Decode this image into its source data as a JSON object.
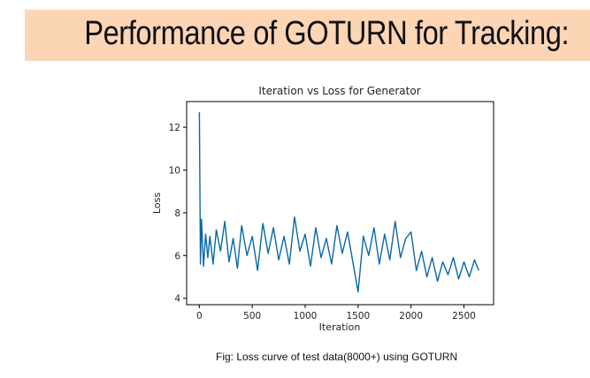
{
  "slide": {
    "title": "Performance of GOTURN for Tracking:",
    "caption": "Fig: Loss curve of test data(8000+) using GOTURN"
  },
  "colors": {
    "title_band": "#fcd5b4",
    "line": "#0868a8"
  },
  "chart_data": {
    "type": "line",
    "title": "Iteration vs Loss for Generator",
    "xlabel": "Iteration",
    "ylabel": "Loss",
    "xlim": [
      -120,
      2780
    ],
    "ylim": [
      3.7,
      13.2
    ],
    "xticks": [
      0,
      500,
      1000,
      1500,
      2000,
      2500
    ],
    "yticks": [
      4,
      6,
      8,
      10,
      12
    ],
    "grid": false,
    "legend": "none",
    "series": [
      {
        "x": [
          0,
          10,
          20,
          40,
          60,
          80,
          100,
          130,
          160,
          200,
          240,
          280,
          320,
          360,
          400,
          450,
          500,
          550,
          600,
          650,
          700,
          750,
          800,
          850,
          900,
          950,
          1000,
          1050,
          1100,
          1150,
          1200,
          1250,
          1300,
          1350,
          1400,
          1450,
          1500,
          1550,
          1600,
          1650,
          1700,
          1750,
          1800,
          1850,
          1900,
          1950,
          2000,
          2050,
          2100,
          2150,
          2200,
          2250,
          2300,
          2350,
          2400,
          2450,
          2500,
          2550,
          2600,
          2640
        ],
        "y": [
          12.7,
          5.6,
          7.7,
          5.5,
          7.0,
          5.9,
          6.9,
          5.6,
          7.2,
          6.2,
          7.6,
          5.7,
          6.8,
          5.4,
          7.4,
          6.0,
          6.9,
          5.3,
          7.5,
          6.1,
          7.3,
          5.8,
          6.9,
          5.6,
          7.8,
          6.2,
          7.0,
          5.5,
          7.3,
          5.9,
          6.8,
          5.6,
          7.4,
          6.1,
          7.1,
          5.7,
          4.3,
          6.9,
          6.0,
          7.3,
          5.6,
          7.0,
          5.8,
          7.6,
          5.9,
          6.8,
          7.1,
          5.3,
          6.2,
          5.0,
          5.9,
          4.8,
          5.7,
          5.1,
          5.9,
          4.9,
          5.7,
          5.0,
          5.8,
          5.3
        ]
      }
    ]
  }
}
